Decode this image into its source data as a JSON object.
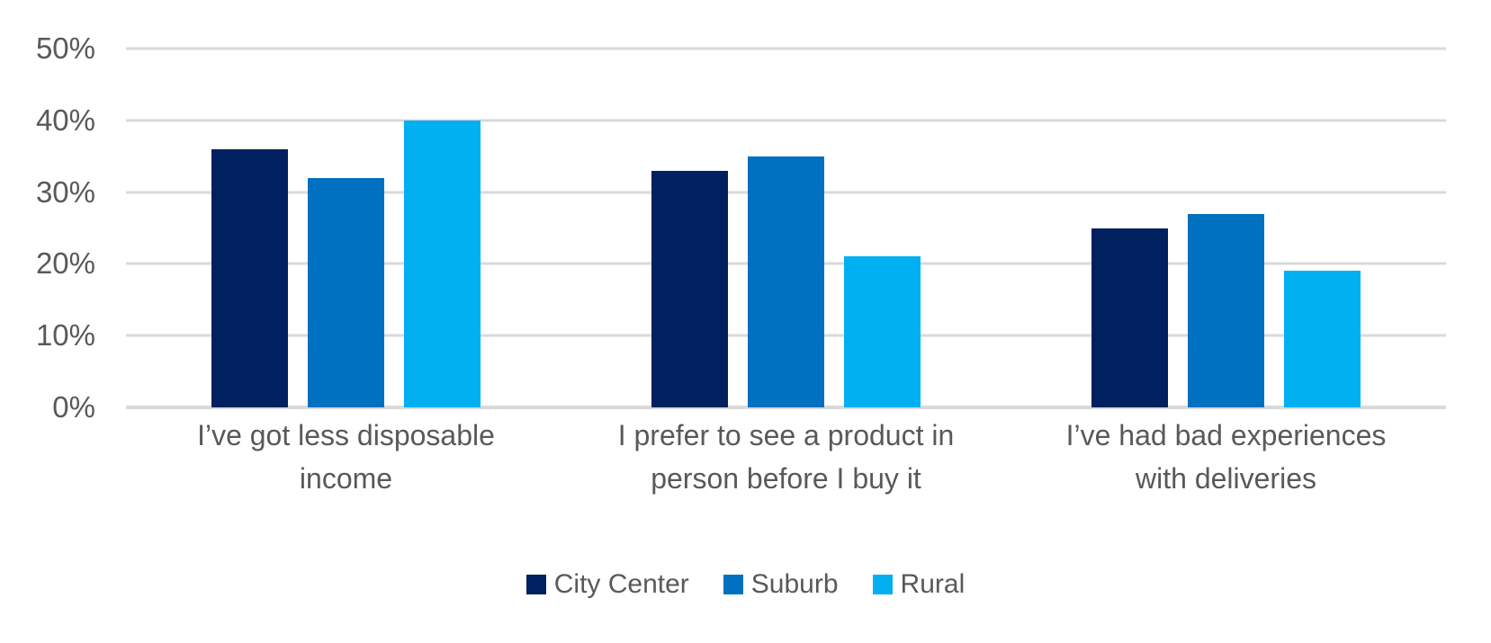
{
  "chart_data": {
    "type": "bar",
    "title": "",
    "xlabel": "",
    "ylabel": "",
    "categories": [
      "I’ve got less disposable income",
      "I prefer to see a product in person before I buy it",
      "I’ve had bad experiences with deliveries"
    ],
    "category_label_lines": [
      [
        "I’ve got less disposable",
        "income"
      ],
      [
        "I prefer to see a product in",
        "person before I buy it"
      ],
      [
        "I’ve had bad experiences",
        "with deliveries"
      ]
    ],
    "series": [
      {
        "name": "City Center",
        "color": "#002060",
        "values": [
          36,
          33,
          25
        ]
      },
      {
        "name": "Suburb",
        "color": "#0070C0",
        "values": [
          32,
          35,
          27
        ]
      },
      {
        "name": "Rural",
        "color": "#00B0F0",
        "values": [
          40,
          21,
          19
        ]
      }
    ],
    "y_ticks": [
      "50%",
      "40%",
      "30%",
      "20%",
      "10%",
      "0%"
    ],
    "ylim": [
      0,
      50
    ],
    "grid": true,
    "legend_position": "bottom"
  },
  "colors": {
    "text": "#595959",
    "gridline": "#D9D9D9",
    "background": "#FFFFFF"
  }
}
